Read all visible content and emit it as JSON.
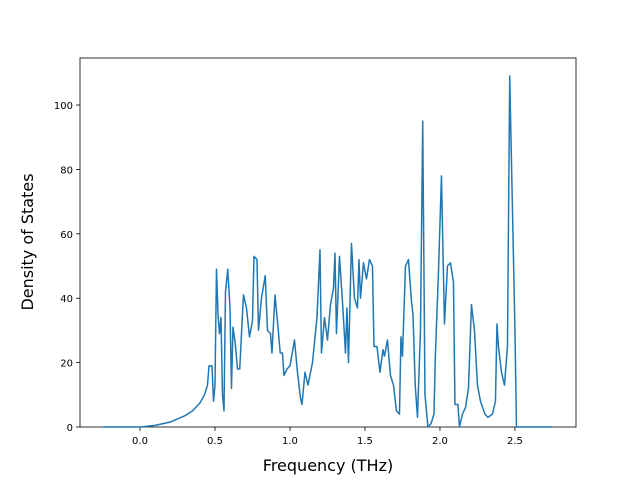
{
  "chart_data": {
    "type": "line",
    "xlabel": "Frequency (THz)",
    "ylabel": "Density of States",
    "x": [
      -0.25,
      0,
      0.1,
      0.2,
      0.3,
      0.35,
      0.4,
      0.43,
      0.45,
      0.46,
      0.48,
      0.49,
      0.5,
      0.51,
      0.52,
      0.53,
      0.54,
      0.55,
      0.56,
      0.57,
      0.585,
      0.6,
      0.61,
      0.62,
      0.635,
      0.65,
      0.665,
      0.68,
      0.69,
      0.71,
      0.73,
      0.75,
      0.76,
      0.78,
      0.79,
      0.81,
      0.835,
      0.85,
      0.87,
      0.88,
      0.9,
      0.92,
      0.935,
      0.95,
      0.96,
      0.98,
      1.0,
      1.03,
      1.05,
      1.07,
      1.08,
      1.1,
      1.12,
      1.15,
      1.18,
      1.2,
      1.21,
      1.23,
      1.25,
      1.27,
      1.29,
      1.3,
      1.31,
      1.33,
      1.35,
      1.37,
      1.38,
      1.39,
      1.41,
      1.43,
      1.45,
      1.46,
      1.47,
      1.49,
      1.51,
      1.53,
      1.55,
      1.56,
      1.58,
      1.6,
      1.62,
      1.63,
      1.65,
      1.67,
      1.69,
      1.71,
      1.73,
      1.74,
      1.75,
      1.77,
      1.79,
      1.81,
      1.82,
      1.835,
      1.85,
      1.87,
      1.885,
      1.9,
      1.92,
      1.94,
      1.96,
      1.97,
      1.99,
      2.01,
      2.03,
      2.05,
      2.07,
      2.09,
      2.1,
      2.12,
      2.13,
      2.15,
      2.17,
      2.19,
      2.21,
      2.23,
      2.25,
      2.27,
      2.3,
      2.32,
      2.35,
      2.37,
      2.38,
      2.39,
      2.41,
      2.43,
      2.45,
      2.465,
      2.48,
      2.5,
      2.51,
      2.6,
      2.75
    ],
    "series": [
      {
        "color": "#1f77b4",
        "values": [
          0,
          0,
          0.5,
          1.5,
          3.5,
          5,
          7.5,
          10,
          13,
          19,
          19,
          8,
          13,
          49,
          35,
          29,
          34,
          10,
          5,
          42,
          49,
          37,
          12,
          31,
          26,
          18,
          18,
          32,
          41,
          37,
          28,
          33,
          53,
          52,
          30,
          40,
          47,
          30,
          29,
          23,
          41,
          31,
          23,
          23,
          16,
          18,
          19,
          27,
          17,
          9,
          7,
          17,
          13,
          20,
          34,
          55,
          23,
          34,
          27,
          38,
          43,
          54,
          29,
          53,
          39,
          23,
          37,
          20,
          57,
          40,
          37,
          52,
          40,
          51,
          46,
          52,
          50,
          25,
          25,
          17,
          24,
          22,
          27,
          16,
          13,
          5,
          4,
          28,
          22,
          50,
          52,
          39,
          35,
          13,
          3,
          30,
          95,
          10,
          0,
          1,
          4,
          23,
          48,
          78,
          32,
          50,
          51,
          45,
          7,
          7,
          0,
          4,
          6,
          12,
          38,
          30,
          13,
          8,
          4,
          3,
          4,
          8,
          32,
          25,
          17,
          13,
          25,
          109,
          75,
          30,
          0,
          0,
          0
        ]
      }
    ],
    "xlim": [
      -0.4,
      2.907
    ],
    "ylim": [
      0,
      114.6
    ],
    "xticks": [
      {
        "value": 0,
        "label": "0.0"
      },
      {
        "value": 0.5,
        "label": "0.5"
      },
      {
        "value": 1,
        "label": "1.0"
      },
      {
        "value": 1.5,
        "label": "1.5"
      },
      {
        "value": 2,
        "label": "2.0"
      },
      {
        "value": 2.5,
        "label": "2.5"
      }
    ],
    "yticks": [
      0,
      20,
      40,
      60,
      80,
      100
    ]
  }
}
